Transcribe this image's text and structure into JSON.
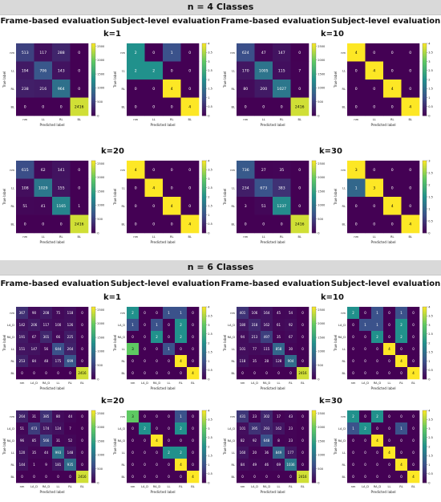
{
  "sections": [
    {
      "title": "n = 4 Classes",
      "headers": [
        "Frame-based evaluation",
        "Subject-level evaluation",
        "Frame-based evaluation",
        "Subject-level evaluation"
      ],
      "k_labels": [
        "k=1",
        "k=10",
        "k=20",
        "k=30"
      ]
    },
    {
      "title": "n = 6 Classes",
      "headers": [
        "Frame-based evaluation",
        "Subject-level evaluation",
        "Frame-based evaluation",
        "Subject-level evaluation"
      ],
      "k_labels": [
        "k=1",
        "k=10",
        "k=20",
        "k=30"
      ]
    }
  ],
  "axis_labels": {
    "x": "Predicted label",
    "y": "True label"
  },
  "class_labels_4": [
    "nm",
    "LL",
    "RL",
    "BL"
  ],
  "class_labels_6": [
    "nm",
    "LA_D",
    "RA_D",
    "LL",
    "RL",
    "BL"
  ],
  "colormap": [
    "#440154",
    "#3b528b",
    "#21918c",
    "#5ec962",
    "#fde725"
  ],
  "chart_data": [
    {
      "type": "heatmap",
      "section": "n = 4 Classes",
      "title": "k=1",
      "subtitle": "Frame-based evaluation",
      "labels": [
        "nm",
        "LL",
        "RL",
        "BL"
      ],
      "vmax": 2600,
      "cbar_ticks": [
        0,
        500,
        1000,
        1500,
        2000,
        2500
      ],
      "matrix": [
        [
          513,
          117,
          288,
          0
        ],
        [
          194,
          706,
          143,
          0
        ],
        [
          238,
          216,
          964,
          0
        ],
        [
          0,
          0,
          0,
          2416
        ]
      ]
    },
    {
      "type": "heatmap",
      "section": "n = 4 Classes",
      "title": "k=1",
      "subtitle": "Subject-level evaluation",
      "labels": [
        "nm",
        "LL",
        "RL",
        "BL"
      ],
      "vmax": 4,
      "cbar_ticks": [
        0,
        0.5,
        1,
        1.5,
        2,
        2.5,
        3,
        3.5,
        4
      ],
      "matrix": [
        [
          2,
          0,
          1,
          0
        ],
        [
          2,
          2,
          0,
          0
        ],
        [
          0,
          0,
          4,
          0
        ],
        [
          0,
          0,
          0,
          4
        ]
      ]
    },
    {
      "type": "heatmap",
      "section": "n = 4 Classes",
      "title": "k=10",
      "subtitle": "Frame-based evaluation",
      "labels": [
        "nm",
        "LL",
        "RL",
        "BL"
      ],
      "vmax": 2600,
      "cbar_ticks": [
        0,
        500,
        1000,
        1500,
        2000,
        2500
      ],
      "matrix": [
        [
          624,
          47,
          147,
          0
        ],
        [
          170,
          1005,
          115,
          7
        ],
        [
          80,
          200,
          1027,
          0
        ],
        [
          0,
          0,
          0,
          2416
        ]
      ]
    },
    {
      "type": "heatmap",
      "section": "n = 4 Classes",
      "title": "k=10",
      "subtitle": "Subject-level evaluation",
      "labels": [
        "nm",
        "LL",
        "RL",
        "BL"
      ],
      "vmax": 4,
      "cbar_ticks": [
        0,
        0.5,
        1,
        1.5,
        2,
        2.5,
        3,
        3.5,
        4
      ],
      "matrix": [
        [
          4,
          0,
          0,
          0
        ],
        [
          0,
          4,
          0,
          0
        ],
        [
          0,
          0,
          4,
          0
        ],
        [
          0,
          0,
          0,
          4
        ]
      ]
    },
    {
      "type": "heatmap",
      "section": "n = 4 Classes",
      "title": "k=20",
      "subtitle": "Frame-based evaluation",
      "labels": [
        "nm",
        "LL",
        "RL",
        "BL"
      ],
      "vmax": 2600,
      "cbar_ticks": [
        0,
        500,
        1000,
        1500,
        2000,
        2500
      ],
      "matrix": [
        [
          615,
          62,
          141,
          0
        ],
        [
          108,
          1029,
          155,
          0
        ],
        [
          51,
          41,
          1165,
          1
        ],
        [
          0,
          0,
          0,
          2416
        ]
      ]
    },
    {
      "type": "heatmap",
      "section": "n = 4 Classes",
      "title": "k=20",
      "subtitle": "Subject-level evaluation",
      "labels": [
        "nm",
        "LL",
        "RL",
        "BL"
      ],
      "vmax": 4,
      "cbar_ticks": [
        0,
        0.5,
        1,
        1.5,
        2,
        2.5,
        3,
        3.5,
        4
      ],
      "matrix": [
        [
          4,
          0,
          0,
          0
        ],
        [
          0,
          4,
          0,
          0
        ],
        [
          0,
          0,
          4,
          0
        ],
        [
          0,
          0,
          0,
          4
        ]
      ]
    },
    {
      "type": "heatmap",
      "section": "n = 4 Classes",
      "title": "k=30",
      "subtitle": "Frame-based evaluation",
      "labels": [
        "nm",
        "LL",
        "RL",
        "BL"
      ],
      "vmax": 2600,
      "cbar_ticks": [
        0,
        500,
        1000,
        1500,
        2000,
        2500
      ],
      "matrix": [
        [
          736,
          27,
          35,
          0
        ],
        [
          234,
          673,
          383,
          0
        ],
        [
          3,
          51,
          1237,
          0
        ],
        [
          0,
          0,
          0,
          2416
        ]
      ]
    },
    {
      "type": "heatmap",
      "section": "n = 4 Classes",
      "title": "k=30",
      "subtitle": "Subject-level evaluation",
      "labels": [
        "nm",
        "LL",
        "RL",
        "BL"
      ],
      "vmax": 3,
      "cbar_ticks": [
        0,
        0.5,
        1,
        1.5,
        2,
        2.5,
        3
      ],
      "matrix": [
        [
          3,
          0,
          0,
          0
        ],
        [
          1,
          3,
          0,
          0
        ],
        [
          0,
          0,
          4,
          0
        ],
        [
          0,
          0,
          0,
          4
        ]
      ]
    },
    {
      "type": "heatmap",
      "section": "n = 6 Classes",
      "title": "k=1",
      "subtitle": "Frame-based evaluation",
      "labels": [
        "nm",
        "LA_D",
        "RA_D",
        "LL",
        "RL",
        "BL"
      ],
      "vmax": 2600,
      "cbar_ticks": [
        0,
        500,
        1000,
        1500,
        2000,
        2500
      ],
      "matrix": [
        [
          367,
          90,
          208,
          75,
          118,
          0
        ],
        [
          142,
          206,
          117,
          100,
          126,
          0
        ],
        [
          191,
          67,
          301,
          66,
          225,
          0
        ],
        [
          151,
          147,
          56,
          644,
          264,
          0
        ],
        [
          253,
          84,
          48,
          175,
          699,
          0
        ],
        [
          0,
          0,
          0,
          0,
          0,
          2416
        ]
      ]
    },
    {
      "type": "heatmap",
      "section": "n = 6 Classes",
      "title": "k=1",
      "subtitle": "Subject-level evaluation",
      "labels": [
        "nm",
        "LA_D",
        "RA_D",
        "LL",
        "RL",
        "BL"
      ],
      "vmax": 4,
      "cbar_ticks": [
        0,
        0.5,
        1,
        1.5,
        2,
        2.5,
        3,
        3.5,
        4
      ],
      "matrix": [
        [
          2,
          0,
          0,
          1,
          1,
          0
        ],
        [
          1,
          0,
          1,
          0,
          2,
          0
        ],
        [
          0,
          0,
          2,
          0,
          2,
          0
        ],
        [
          3,
          0,
          0,
          1,
          0,
          0
        ],
        [
          0,
          0,
          0,
          0,
          4,
          0
        ],
        [
          0,
          0,
          0,
          0,
          0,
          4
        ]
      ]
    },
    {
      "type": "heatmap",
      "section": "n = 6 Classes",
      "title": "k=10",
      "subtitle": "Frame-based evaluation",
      "labels": [
        "nm",
        "LA_D",
        "RA_D",
        "LL",
        "RL",
        "BL"
      ],
      "vmax": 2600,
      "cbar_ticks": [
        0,
        500,
        1000,
        1500,
        2000,
        2500
      ],
      "matrix": [
        [
          401,
          106,
          164,
          45,
          54,
          0
        ],
        [
          180,
          318,
          162,
          61,
          92,
          0
        ],
        [
          94,
          213,
          497,
          35,
          67,
          0
        ],
        [
          101,
          77,
          115,
          858,
          30,
          0
        ],
        [
          118,
          35,
          28,
          128,
          904,
          0
        ],
        [
          0,
          0,
          0,
          0,
          0,
          2416
        ]
      ]
    },
    {
      "type": "heatmap",
      "section": "n = 6 Classes",
      "title": "k=10",
      "subtitle": "Subject-level evaluation",
      "labels": [
        "nm",
        "LA_D",
        "RA_D",
        "LL",
        "RL",
        "BL"
      ],
      "vmax": 4,
      "cbar_ticks": [
        0,
        0.5,
        1,
        1.5,
        2,
        2.5,
        3,
        3.5,
        4
      ],
      "matrix": [
        [
          2,
          0,
          1,
          0,
          1,
          0
        ],
        [
          0,
          1,
          1,
          0,
          2,
          0
        ],
        [
          0,
          0,
          2,
          0,
          2,
          0
        ],
        [
          0,
          0,
          0,
          4,
          0,
          0
        ],
        [
          0,
          0,
          0,
          0,
          4,
          0
        ],
        [
          0,
          0,
          0,
          0,
          0,
          4
        ]
      ]
    },
    {
      "type": "heatmap",
      "section": "n = 6 Classes",
      "title": "k=20",
      "subtitle": "Frame-based evaluation",
      "labels": [
        "nm",
        "LA_D",
        "RA_D",
        "LL",
        "RL",
        "BL"
      ],
      "vmax": 2600,
      "cbar_ticks": [
        0,
        500,
        1000,
        1500,
        2000,
        2500
      ],
      "matrix": [
        [
          264,
          31,
          385,
          80,
          44,
          0
        ],
        [
          51,
          473,
          174,
          124,
          7,
          0
        ],
        [
          96,
          85,
          566,
          31,
          52,
          0
        ],
        [
          120,
          35,
          44,
          993,
          148,
          0
        ],
        [
          144,
          1,
          9,
          181,
          935,
          0
        ],
        [
          0,
          0,
          0,
          0,
          0,
          2416
        ]
      ]
    },
    {
      "type": "heatmap",
      "section": "n = 6 Classes",
      "title": "k=20",
      "subtitle": "Subject-level evaluation",
      "labels": [
        "nm",
        "LA_D",
        "RA_D",
        "LL",
        "RL",
        "BL"
      ],
      "vmax": 4,
      "cbar_ticks": [
        0,
        0.5,
        1,
        1.5,
        2,
        2.5,
        3,
        3.5,
        4
      ],
      "matrix": [
        [
          3,
          0,
          0,
          0,
          1,
          0
        ],
        [
          0,
          2,
          0,
          0,
          2,
          0
        ],
        [
          0,
          0,
          4,
          0,
          0,
          0
        ],
        [
          0,
          0,
          0,
          2,
          2,
          0
        ],
        [
          0,
          0,
          0,
          0,
          4,
          0
        ],
        [
          0,
          0,
          0,
          0,
          0,
          4
        ]
      ]
    },
    {
      "type": "heatmap",
      "section": "n = 6 Classes",
      "title": "k=30",
      "subtitle": "Frame-based evaluation",
      "labels": [
        "nm",
        "LA_D",
        "RA_D",
        "LL",
        "RL",
        "BL"
      ],
      "vmax": 2600,
      "cbar_ticks": [
        0,
        500,
        1000,
        1500,
        2000,
        2500
      ],
      "matrix": [
        [
          431,
          23,
          302,
          17,
          43,
          0
        ],
        [
          101,
          395,
          293,
          162,
          23,
          0
        ],
        [
          82,
          92,
          648,
          8,
          23,
          0
        ],
        [
          160,
          20,
          36,
          849,
          177,
          0
        ],
        [
          84,
          49,
          46,
          69,
          1036,
          0
        ],
        [
          0,
          0,
          0,
          0,
          0,
          2416
        ]
      ]
    },
    {
      "type": "heatmap",
      "section": "n = 6 Classes",
      "title": "k=30",
      "subtitle": "Subject-level evaluation",
      "labels": [
        "nm",
        "LA_D",
        "RA_D",
        "LL",
        "RL",
        "BL"
      ],
      "vmax": 4,
      "cbar_ticks": [
        0,
        0.5,
        1,
        1.5,
        2,
        2.5,
        3,
        3.5,
        4
      ],
      "matrix": [
        [
          2,
          0,
          2,
          0,
          0,
          0
        ],
        [
          1,
          2,
          0,
          0,
          1,
          0
        ],
        [
          0,
          0,
          4,
          0,
          0,
          0
        ],
        [
          0,
          0,
          0,
          4,
          0,
          0
        ],
        [
          0,
          0,
          0,
          0,
          4,
          0
        ],
        [
          0,
          0,
          0,
          0,
          0,
          4
        ]
      ]
    }
  ]
}
